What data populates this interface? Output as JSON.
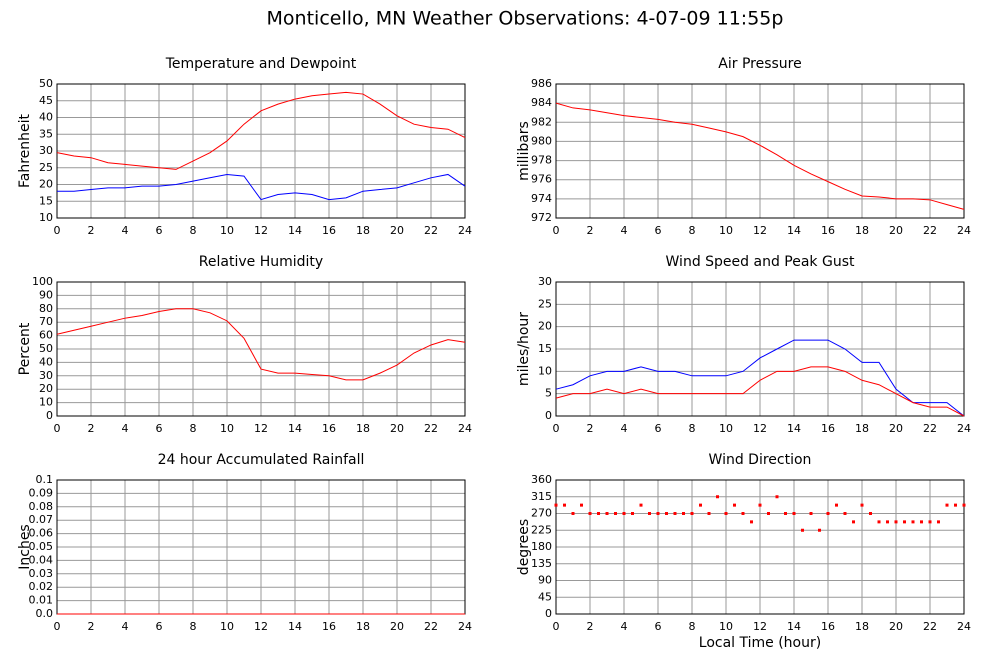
{
  "title": "Monticello, MN Weather Observations: 4-07-09 11:55p",
  "chart_data": [
    {
      "type": "line",
      "title": "Temperature and Dewpoint",
      "ylabel": "Fahrenheit",
      "grid": true,
      "x": [
        0,
        1,
        2,
        3,
        4,
        5,
        6,
        7,
        8,
        9,
        10,
        11,
        12,
        13,
        14,
        15,
        16,
        17,
        18,
        19,
        20,
        21,
        22,
        23,
        24
      ],
      "xlim": [
        0,
        24
      ],
      "xticks": [
        0,
        2,
        4,
        6,
        8,
        10,
        12,
        14,
        16,
        18,
        20,
        22,
        24
      ],
      "ylim": [
        10,
        50
      ],
      "yticks": [
        10,
        15,
        20,
        25,
        30,
        35,
        40,
        45,
        50
      ],
      "series": [
        {
          "color": "#ff0000",
          "values": [
            29.5,
            28.5,
            28,
            26.5,
            26,
            25.5,
            25,
            24.5,
            27,
            29.5,
            33,
            38,
            42,
            44,
            45.5,
            46.5,
            47,
            47.5,
            47,
            44,
            40.5,
            38,
            37,
            36.5,
            34
          ]
        },
        {
          "color": "#0000ff",
          "values": [
            18,
            18,
            18.5,
            19,
            19,
            19.5,
            19.5,
            20,
            21,
            22,
            23,
            22.5,
            15.5,
            17,
            17.5,
            17,
            15.5,
            16,
            18,
            18.5,
            19,
            20.5,
            22,
            23,
            19.5
          ]
        }
      ]
    },
    {
      "type": "line",
      "title": "Air Pressure",
      "ylabel": "millibars",
      "grid": true,
      "x": [
        0,
        1,
        2,
        3,
        4,
        5,
        6,
        7,
        8,
        9,
        10,
        11,
        12,
        13,
        14,
        15,
        16,
        17,
        18,
        19,
        20,
        21,
        22,
        23,
        24
      ],
      "xlim": [
        0,
        24
      ],
      "xticks": [
        0,
        2,
        4,
        6,
        8,
        10,
        12,
        14,
        16,
        18,
        20,
        22,
        24
      ],
      "ylim": [
        972,
        986
      ],
      "yticks": [
        972,
        974,
        976,
        978,
        980,
        982,
        984,
        986
      ],
      "series": [
        {
          "color": "#ff0000",
          "values": [
            984,
            983.5,
            983.3,
            983,
            982.7,
            982.5,
            982.3,
            982,
            981.8,
            981.4,
            981,
            980.5,
            979.6,
            978.6,
            977.5,
            976.6,
            975.8,
            975,
            974.3,
            974.2,
            974,
            974,
            973.9,
            973.4,
            972.9
          ]
        }
      ]
    },
    {
      "type": "line",
      "title": "Relative Humidity",
      "ylabel": "Percent",
      "grid": true,
      "x": [
        0,
        1,
        2,
        3,
        4,
        5,
        6,
        7,
        8,
        9,
        10,
        11,
        12,
        13,
        14,
        15,
        16,
        17,
        18,
        19,
        20,
        21,
        22,
        23,
        24
      ],
      "xlim": [
        0,
        24
      ],
      "xticks": [
        0,
        2,
        4,
        6,
        8,
        10,
        12,
        14,
        16,
        18,
        20,
        22,
        24
      ],
      "ylim": [
        0,
        100
      ],
      "yticks": [
        0,
        10,
        20,
        30,
        40,
        50,
        60,
        70,
        80,
        90,
        100
      ],
      "series": [
        {
          "color": "#ff0000",
          "values": [
            61,
            64,
            67,
            70,
            73,
            75,
            78,
            80,
            80,
            77,
            71,
            58,
            35,
            32,
            32,
            31,
            30,
            27,
            27,
            32,
            38,
            47,
            53,
            57,
            55
          ]
        }
      ]
    },
    {
      "type": "line",
      "title": "Wind Speed and Peak Gust",
      "ylabel": "miles/hour",
      "grid": true,
      "x": [
        0,
        1,
        2,
        3,
        4,
        5,
        6,
        7,
        8,
        9,
        10,
        11,
        12,
        13,
        14,
        15,
        16,
        17,
        18,
        19,
        20,
        21,
        22,
        23,
        24
      ],
      "xlim": [
        0,
        24
      ],
      "xticks": [
        0,
        2,
        4,
        6,
        8,
        10,
        12,
        14,
        16,
        18,
        20,
        22,
        24
      ],
      "ylim": [
        0,
        30
      ],
      "yticks": [
        0,
        5,
        10,
        15,
        20,
        25,
        30
      ],
      "series": [
        {
          "color": "#0000ff",
          "values": [
            6,
            7,
            9,
            10,
            10,
            11,
            10,
            10,
            9,
            9,
            9,
            10,
            13,
            15,
            17,
            17,
            17,
            15,
            12,
            12,
            6,
            3,
            3,
            3,
            0
          ]
        },
        {
          "color": "#ff0000",
          "values": [
            4,
            5,
            5,
            6,
            5,
            6,
            5,
            5,
            5,
            5,
            5,
            5,
            8,
            10,
            10,
            11,
            11,
            10,
            8,
            7,
            5,
            3,
            2,
            2,
            0
          ]
        }
      ]
    },
    {
      "type": "line",
      "title": "24 hour Accumulated Rainfall",
      "ylabel": "Inches",
      "grid": true,
      "x": [
        0,
        1,
        2,
        3,
        4,
        5,
        6,
        7,
        8,
        9,
        10,
        11,
        12,
        13,
        14,
        15,
        16,
        17,
        18,
        19,
        20,
        21,
        22,
        23,
        24
      ],
      "xlim": [
        0,
        24
      ],
      "xticks": [
        0,
        2,
        4,
        6,
        8,
        10,
        12,
        14,
        16,
        18,
        20,
        22,
        24
      ],
      "ylim": [
        0,
        0.1
      ],
      "yticks": [
        {
          "value": 0,
          "label": "0.0"
        },
        0.01,
        0.02,
        0.03,
        0.04,
        0.05,
        0.06,
        0.07,
        0.08,
        0.09,
        0.1
      ],
      "series": [
        {
          "color": "#ff0000",
          "values": [
            0,
            0,
            0,
            0,
            0,
            0,
            0,
            0,
            0,
            0,
            0,
            0,
            0,
            0,
            0,
            0,
            0,
            0,
            0,
            0,
            0,
            0,
            0,
            0,
            0
          ]
        }
      ]
    },
    {
      "type": "scatter",
      "title": "Wind Direction",
      "ylabel": "degrees",
      "xlabel": "Local Time (hour)",
      "grid": true,
      "x": [
        0,
        0.5,
        1,
        1.5,
        2,
        2.5,
        3,
        3.5,
        4,
        4.5,
        5,
        5.5,
        6,
        6.5,
        7,
        7.5,
        8,
        8.5,
        9,
        9.5,
        10,
        10.5,
        11,
        11.5,
        12,
        12.5,
        13,
        13.5,
        14,
        14.5,
        15,
        15.5,
        16,
        16.5,
        17,
        17.5,
        18,
        18.5,
        19,
        19.5,
        20,
        20.5,
        21,
        21.5,
        22,
        22.5,
        23,
        23.5,
        24
      ],
      "xlim": [
        0,
        24
      ],
      "xticks": [
        0,
        2,
        4,
        6,
        8,
        10,
        12,
        14,
        16,
        18,
        20,
        22,
        24
      ],
      "ylim": [
        0,
        360
      ],
      "yticks": [
        0,
        45,
        90,
        135,
        180,
        225,
        270,
        315,
        360
      ],
      "series": [
        {
          "color": "#ff0000",
          "values": [
            292.5,
            292.5,
            270,
            292.5,
            270,
            270,
            270,
            270,
            270,
            270,
            292.5,
            270,
            270,
            270,
            270,
            270,
            270,
            292.5,
            270,
            315,
            270,
            292.5,
            270,
            247.5,
            292.5,
            270,
            315,
            270,
            270,
            225,
            270,
            225,
            270,
            292.5,
            270,
            247.5,
            292.5,
            270,
            247.5,
            247.5,
            247.5,
            247.5,
            247.5,
            247.5,
            247.5,
            247.5,
            292.5,
            292.5,
            292.5
          ]
        }
      ]
    }
  ]
}
